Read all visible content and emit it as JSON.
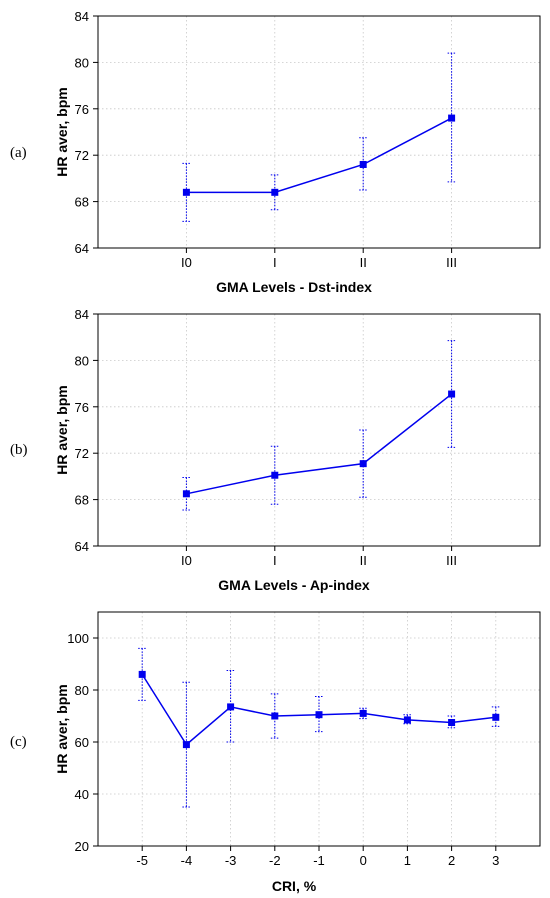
{
  "chart_data": [
    {
      "panel_label": "(a)",
      "type": "line",
      "xlabel": "GMA Levels  - Dst-index",
      "ylabel": "HR aver, bpm",
      "categories": [
        "I0",
        "I",
        "II",
        "III"
      ],
      "values": [
        68.8,
        68.8,
        71.2,
        75.2
      ],
      "error_low": [
        66.3,
        67.3,
        69.0,
        69.7
      ],
      "error_high": [
        71.3,
        70.3,
        73.5,
        80.8
      ],
      "ylim": [
        64,
        84
      ],
      "yticks": [
        64,
        68,
        72,
        76,
        80,
        84
      ],
      "grid": true,
      "color": "#0000ee"
    },
    {
      "panel_label": "(b)",
      "type": "line",
      "xlabel": "GMA Levels - Ap-index",
      "ylabel": "HR aver, bpm",
      "categories": [
        "I0",
        "I",
        "II",
        "III"
      ],
      "values": [
        68.5,
        70.1,
        71.1,
        77.1
      ],
      "error_low": [
        67.1,
        67.6,
        68.2,
        72.5
      ],
      "error_high": [
        69.9,
        72.6,
        74.0,
        81.7
      ],
      "ylim": [
        64,
        84
      ],
      "yticks": [
        64,
        68,
        72,
        76,
        80,
        84
      ],
      "grid": true,
      "color": "#0000ee"
    },
    {
      "panel_label": "(c)",
      "type": "line",
      "xlabel": "CRI, %",
      "ylabel": "HR aver, bpm",
      "categories": [
        "-5",
        "-4",
        "-3",
        "-2",
        "-1",
        "0",
        "1",
        "2",
        "3"
      ],
      "values": [
        86,
        59,
        73.5,
        70,
        70.5,
        71,
        68.5,
        67.5,
        69.5
      ],
      "error_low": [
        76,
        35,
        60,
        61.5,
        64,
        69,
        67,
        65.5,
        66
      ],
      "error_high": [
        96,
        83,
        87.5,
        78.5,
        77.5,
        73,
        70.5,
        70,
        73.5
      ],
      "ylim": [
        20,
        110
      ],
      "yticks": [
        20,
        40,
        60,
        80,
        100
      ],
      "grid": true,
      "color": "#0000ee"
    }
  ]
}
